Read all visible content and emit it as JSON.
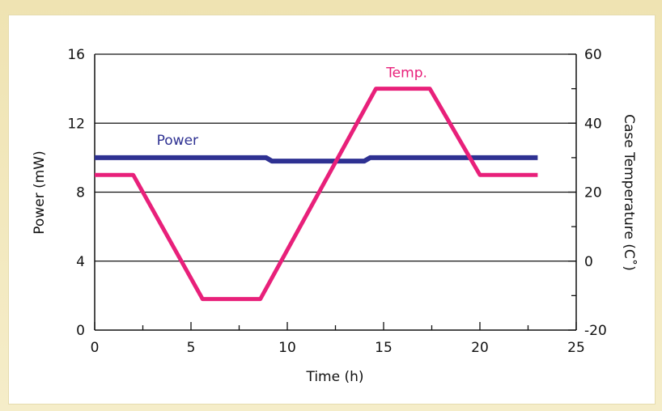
{
  "chart_data": {
    "type": "line",
    "title": "",
    "xlabel": "Time (h)",
    "ylabel": "Power (mW)",
    "y2label": "Case Temperature (C˚)",
    "xlim": [
      0,
      25
    ],
    "ylim": [
      0,
      16
    ],
    "y2lim": [
      -20,
      60
    ],
    "x_ticks": [
      0,
      5,
      10,
      15,
      20,
      25
    ],
    "y_ticks": [
      0,
      4,
      8,
      12,
      16
    ],
    "y2_ticks": [
      -20,
      0,
      20,
      40,
      60
    ],
    "grid": "horizontal",
    "series": [
      {
        "name": "Power",
        "axis": "left",
        "color": "#2e3192",
        "x": [
          0,
          8.9,
          9.2,
          14.0,
          14.3,
          23
        ],
        "y": [
          10,
          10,
          9.8,
          9.8,
          10,
          10
        ]
      },
      {
        "name": "Temp.",
        "axis": "right",
        "color": "#e8207a",
        "x": [
          0,
          2.0,
          5.6,
          8.6,
          14.6,
          17.4,
          20.0,
          23
        ],
        "y": [
          25,
          25,
          -11,
          -11,
          50,
          50,
          25,
          25
        ]
      }
    ]
  }
}
